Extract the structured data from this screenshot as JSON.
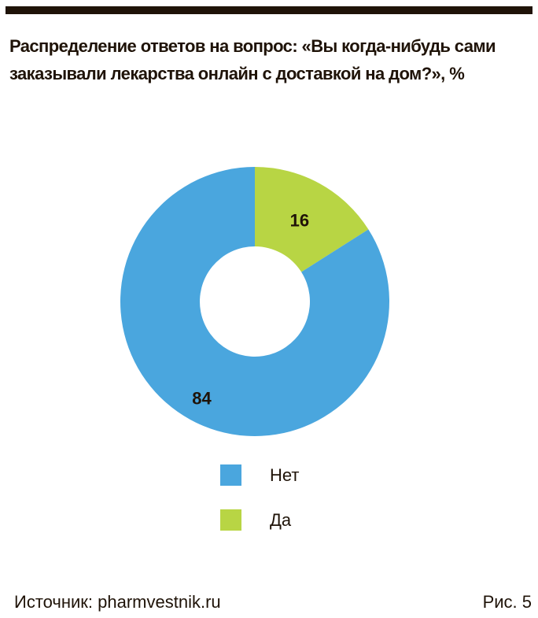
{
  "title": "Распределение ответов на вопрос: «Вы когда-нибудь сами заказывали лекарства онлайн с доставкой на дом?», %",
  "chart_data": {
    "type": "pie",
    "subtype": "donut",
    "title": "Распределение ответов на вопрос: «Вы когда-нибудь сами заказывали лекарства онлайн с доставкой на дом?», %",
    "categories": [
      "Нет",
      "Да"
    ],
    "values": [
      84,
      16
    ],
    "value_labels": [
      "84",
      "16"
    ],
    "colors": [
      "#4aa6de",
      "#b8d544"
    ],
    "legend": [
      "Нет",
      "Да"
    ],
    "legend_placement": "bottom"
  },
  "footer": {
    "source": "Источник: pharmvestnik.ru",
    "figure": "Рис. 5"
  }
}
